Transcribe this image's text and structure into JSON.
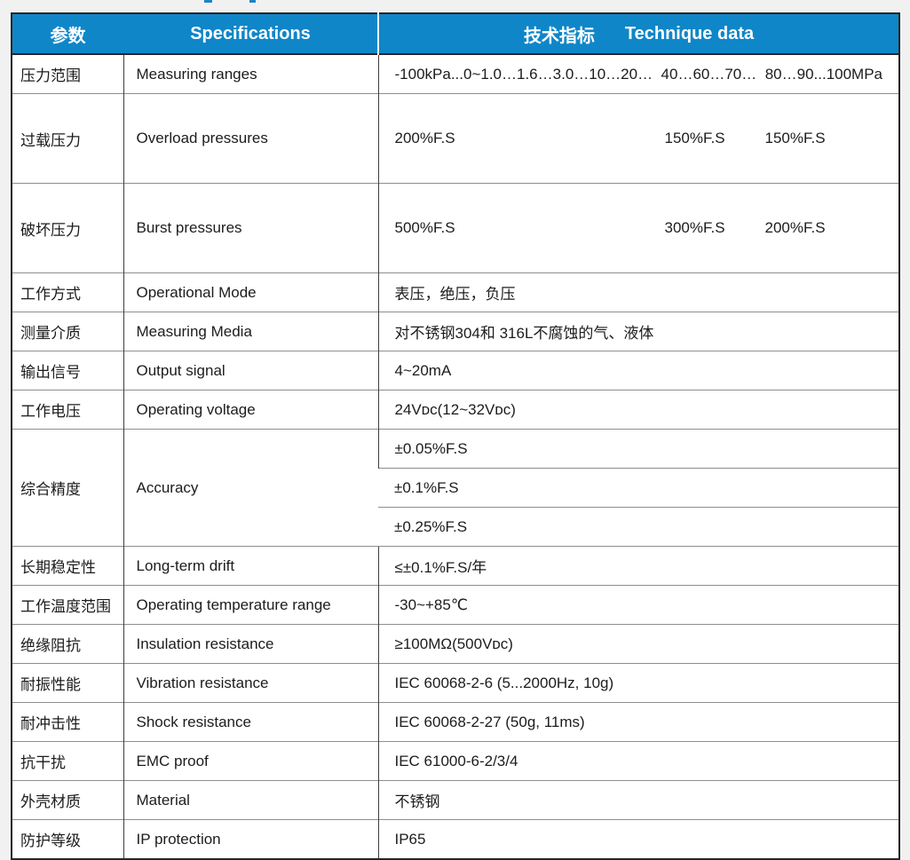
{
  "colors": {
    "header_bg": "#0f86c8",
    "header_text": "#ffffff",
    "page_bg": "#f2f1f1",
    "body_text": "#1c1c1c",
    "outer_border": "#262626",
    "row_line": "#8e8e8e"
  },
  "header": {
    "col1": "参数",
    "col2": "Specifications",
    "col3_zh": "技术指标",
    "col3_en": "Technique data"
  },
  "rows": [
    {
      "param": "压力范围",
      "spec": "Measuring ranges",
      "value": "-100kPa...0~1.0…1.6…3.0…10…20…  40…60…70…  80…90...100MPa"
    },
    {
      "param": "过载压力",
      "spec": "Overload pressures",
      "values": [
        "200%F.S",
        "150%F.S",
        "150%F.S"
      ]
    },
    {
      "param": "破坏压力",
      "spec": "Burst pressures",
      "values": [
        "500%F.S",
        "300%F.S",
        "200%F.S"
      ]
    },
    {
      "param": "工作方式",
      "spec": "Operational Mode",
      "value": "表压，绝压，负压"
    },
    {
      "param": "测量介质",
      "spec": "Measuring Media",
      "value": "对不锈钢304和 316L不腐蚀的气、液体"
    },
    {
      "param": "输出信号",
      "spec": "Output signal",
      "value": "4~20mA"
    },
    {
      "param": "工作电压",
      "spec": "Operating voltage",
      "value": "24Vᴅᴄ(12~32Vᴅᴄ)"
    },
    {
      "param": "综合精度",
      "spec": "Accuracy",
      "values": [
        "±0.05%F.S",
        "±0.1%F.S",
        "±0.25%F.S"
      ]
    },
    {
      "param": "长期稳定性",
      "spec": "Long-term drift",
      "value": "≤±0.1%F.S/年"
    },
    {
      "param": "工作温度范围",
      "spec": "Operating temperature range",
      "value": "-30~+85℃"
    },
    {
      "param": "绝缘阻抗",
      "spec": "Insulation resistance",
      "value": "≥100MΩ(500Vᴅᴄ)"
    },
    {
      "param": "耐振性能",
      "spec": "Vibration resistance",
      "value": "IEC 60068-2-6 (5...2000Hz, 10g)"
    },
    {
      "param": "耐冲击性",
      "spec": "Shock resistance",
      "value": "IEC 60068-2-27 (50g, 11ms)"
    },
    {
      "param": "抗干扰",
      "spec": "EMC proof",
      "value": "IEC 61000-6-2/3/4"
    },
    {
      "param": "外壳材质",
      "spec": "Material",
      "value": "不锈钢"
    },
    {
      "param": "防护等级",
      "spec": "IP protection",
      "value": "IP65"
    }
  ]
}
